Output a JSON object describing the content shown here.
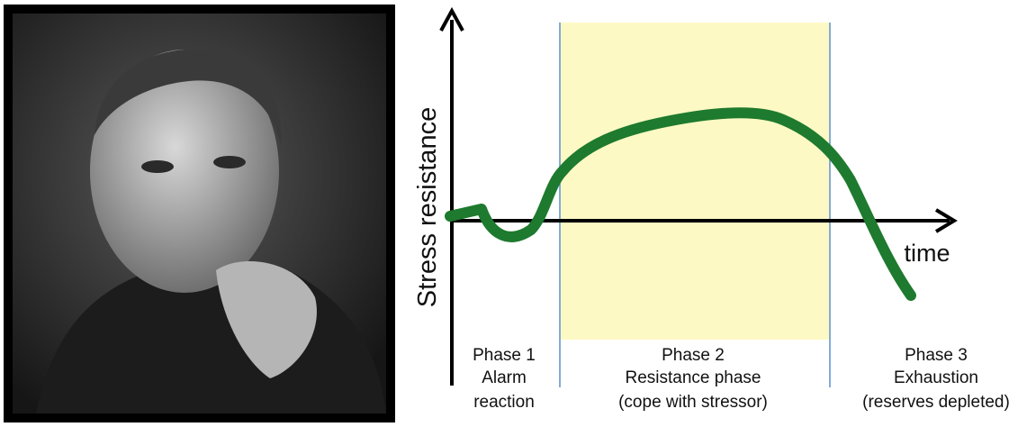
{
  "axes": {
    "y_label": "Stress resistance",
    "x_label": "time"
  },
  "phases": [
    {
      "lines": [
        "Phase 1",
        "Alarm",
        "reaction"
      ]
    },
    {
      "lines": [
        "Phase 2",
        "Resistance phase",
        "(cope with stressor)"
      ]
    },
    {
      "lines": [
        "Phase 3",
        "Exhaustion",
        "(reserves depleted)"
      ]
    }
  ]
}
